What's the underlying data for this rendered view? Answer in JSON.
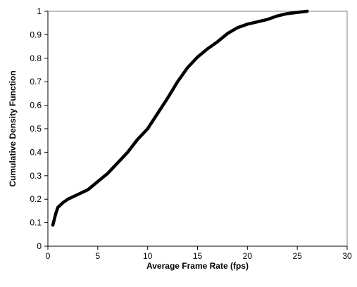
{
  "chart_data": {
    "type": "line",
    "title": "",
    "xlabel": "Average Frame Rate (fps)",
    "ylabel": "Cumulative Density Function",
    "xlim": [
      0,
      30
    ],
    "ylim": [
      0,
      1
    ],
    "x_ticks": [
      0,
      5,
      10,
      15,
      20,
      25,
      30
    ],
    "x_tick_labels": [
      "0",
      "5",
      "10",
      "15",
      "20",
      "25",
      "30"
    ],
    "y_ticks": [
      0,
      0.1,
      0.2,
      0.3,
      0.4,
      0.5,
      0.6,
      0.7,
      0.8,
      0.9,
      1
    ],
    "y_tick_labels": [
      "0",
      "0.1",
      "0.2",
      "0.3",
      "0.4",
      "0.5",
      "0.6",
      "0.7",
      "0.8",
      "0.9",
      "1"
    ],
    "grid": false,
    "legend": "none",
    "series": [
      {
        "color": "#000000",
        "x": [
          0.5,
          0.8,
          1.0,
          1.5,
          2.0,
          3.0,
          4.0,
          5.0,
          6.0,
          7.0,
          8.0,
          9.0,
          10.0,
          11.0,
          12.0,
          13.0,
          14.0,
          15.0,
          16.0,
          17.0,
          18.0,
          19.0,
          20.0,
          21.0,
          22.0,
          23.0,
          24.0,
          25.0,
          26.0
        ],
        "y": [
          0.09,
          0.14,
          0.165,
          0.185,
          0.2,
          0.22,
          0.24,
          0.275,
          0.31,
          0.355,
          0.4,
          0.455,
          0.5,
          0.565,
          0.63,
          0.7,
          0.76,
          0.805,
          0.84,
          0.87,
          0.905,
          0.93,
          0.945,
          0.955,
          0.965,
          0.98,
          0.99,
          0.995,
          1.0
        ]
      }
    ]
  }
}
